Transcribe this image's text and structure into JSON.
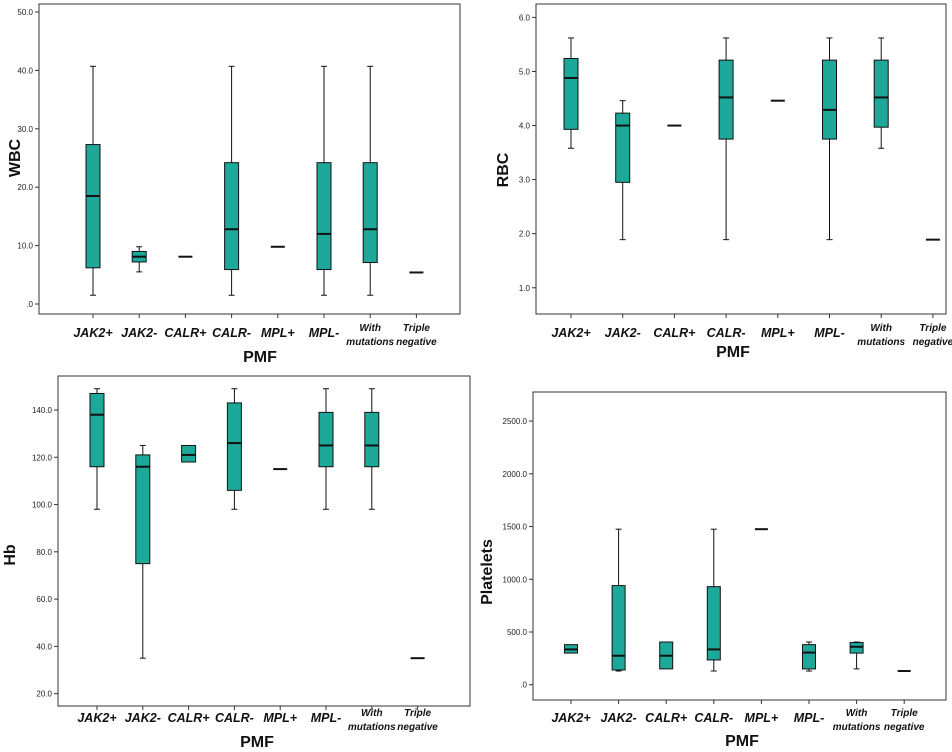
{
  "colors": {
    "box_fill": "#1ea89a",
    "box_stroke": "#111111",
    "frame": "#333333"
  },
  "chart_data": [
    {
      "type": "box",
      "xlabel": "PMF",
      "ylabel": "WBC",
      "ylim": [
        0,
        50
      ],
      "yticks": [
        ".0",
        "10.0",
        "20.0",
        "30.0",
        "40.0",
        "50.0"
      ],
      "ytick_values": [
        0,
        10,
        20,
        30,
        40,
        50
      ],
      "categories": [
        "JAK2+",
        "JAK2-",
        "CALR+",
        "CALR-",
        "MPL+",
        "MPL-",
        "With\nmutations",
        "Triple\nnegative"
      ],
      "boxes": [
        {
          "min": 1.5,
          "q1": 6.2,
          "median": 18.5,
          "q3": 27.3,
          "max": 40.7
        },
        {
          "min": 5.5,
          "q1": 7.2,
          "median": 8.1,
          "q3": 9.0,
          "max": 9.8
        },
        {
          "min": 8.1,
          "q1": 8.1,
          "median": 8.1,
          "q3": 8.1,
          "max": 8.1
        },
        {
          "min": 1.5,
          "q1": 5.9,
          "median": 12.8,
          "q3": 24.2,
          "max": 40.7
        },
        {
          "min": 9.8,
          "q1": 9.8,
          "median": 9.8,
          "q3": 9.8,
          "max": 9.8
        },
        {
          "min": 1.5,
          "q1": 5.9,
          "median": 12.0,
          "q3": 24.2,
          "max": 40.7
        },
        {
          "min": 1.5,
          "q1": 7.1,
          "median": 12.8,
          "q3": 24.2,
          "max": 40.7
        },
        {
          "min": 5.4,
          "q1": 5.4,
          "median": 5.4,
          "q3": 5.4,
          "max": 5.4
        }
      ]
    },
    {
      "type": "box",
      "xlabel": "PMF",
      "ylabel": "RBC",
      "ylim": [
        0.7,
        6.1
      ],
      "yticks": [
        "1.0",
        "2.0",
        "3.0",
        "4.0",
        "5.0",
        "6.0"
      ],
      "ytick_values": [
        1,
        2,
        3,
        4,
        5,
        6
      ],
      "categories": [
        "JAK2+",
        "JAK2-",
        "CALR+",
        "CALR-",
        "MPL+",
        "MPL-",
        "With\nmutations",
        "Triple\nnegative"
      ],
      "boxes": [
        {
          "min": 3.58,
          "q1": 3.93,
          "median": 4.88,
          "q3": 5.24,
          "max": 5.62
        },
        {
          "min": 1.89,
          "q1": 2.95,
          "median": 4.0,
          "q3": 4.23,
          "max": 4.46
        },
        {
          "min": 4.0,
          "q1": 4.0,
          "median": 4.0,
          "q3": 4.0,
          "max": 4.0
        },
        {
          "min": 1.89,
          "q1": 3.75,
          "median": 4.52,
          "q3": 5.21,
          "max": 5.62
        },
        {
          "min": 4.46,
          "q1": 4.46,
          "median": 4.46,
          "q3": 4.46,
          "max": 4.46
        },
        {
          "min": 1.89,
          "q1": 3.75,
          "median": 4.29,
          "q3": 5.21,
          "max": 5.62
        },
        {
          "min": 3.58,
          "q1": 3.97,
          "median": 4.52,
          "q3": 5.21,
          "max": 5.62
        },
        {
          "min": 1.89,
          "q1": 1.89,
          "median": 1.89,
          "q3": 1.89,
          "max": 1.89
        }
      ]
    },
    {
      "type": "box",
      "xlabel": "PMF",
      "ylabel": "Hb",
      "ylim": [
        19,
        151
      ],
      "yticks": [
        "20.0",
        "40.0",
        "60.0",
        "80.0",
        "100.0",
        "120.0",
        "140.0"
      ],
      "ytick_values": [
        20,
        40,
        60,
        80,
        100,
        120,
        140
      ],
      "categories": [
        "JAK2+",
        "JAK2-",
        "CALR+",
        "CALR-",
        "MPL+",
        "MPL-",
        "With\nmutations",
        "Triple\nnegative"
      ],
      "boxes": [
        {
          "min": 98,
          "q1": 116,
          "median": 138,
          "q3": 147,
          "max": 149
        },
        {
          "min": 35,
          "q1": 75,
          "median": 116,
          "q3": 121,
          "max": 125
        },
        {
          "min": 118,
          "q1": 118,
          "median": 121,
          "q3": 125,
          "max": 125
        },
        {
          "min": 98,
          "q1": 106,
          "median": 126,
          "q3": 143,
          "max": 149
        },
        {
          "min": 115,
          "q1": 115,
          "median": 115,
          "q3": 115,
          "max": 115
        },
        {
          "min": 98,
          "q1": 116,
          "median": 125,
          "q3": 139,
          "max": 149
        },
        {
          "min": 98,
          "q1": 116,
          "median": 125,
          "q3": 139,
          "max": 149
        },
        {
          "min": 35,
          "q1": 35,
          "median": 35,
          "q3": 35,
          "max": 35
        }
      ]
    },
    {
      "type": "box",
      "xlabel": "PMF",
      "ylabel": "Platelets",
      "ylim": [
        -50,
        2700
      ],
      "yticks": [
        ".0",
        "500.0",
        "1000.0",
        "1500.0",
        "2000.0",
        "2500.0"
      ],
      "ytick_values": [
        0,
        500,
        1000,
        1500,
        2000,
        2500
      ],
      "categories": [
        "JAK2+",
        "JAK2-",
        "CALR+",
        "CALR-",
        "MPL+",
        "MPL-",
        "With\nmutations",
        "Triple\nnegative"
      ],
      "boxes": [
        {
          "min": 300,
          "q1": 300,
          "median": 335,
          "q3": 380,
          "max": 380
        },
        {
          "min": 130,
          "q1": 140,
          "median": 275,
          "q3": 940,
          "max": 1475
        },
        {
          "min": 150,
          "q1": 150,
          "median": 275,
          "q3": 405,
          "max": 405
        },
        {
          "min": 130,
          "q1": 235,
          "median": 335,
          "q3": 930,
          "max": 1475
        },
        {
          "min": 1475,
          "q1": 1475,
          "median": 1475,
          "q3": 1475,
          "max": 1475
        },
        {
          "min": 130,
          "q1": 150,
          "median": 305,
          "q3": 380,
          "max": 405
        },
        {
          "min": 150,
          "q1": 300,
          "median": 360,
          "q3": 400,
          "max": 405
        },
        {
          "min": 130,
          "q1": 130,
          "median": 130,
          "q3": 130,
          "max": 130
        }
      ]
    }
  ]
}
